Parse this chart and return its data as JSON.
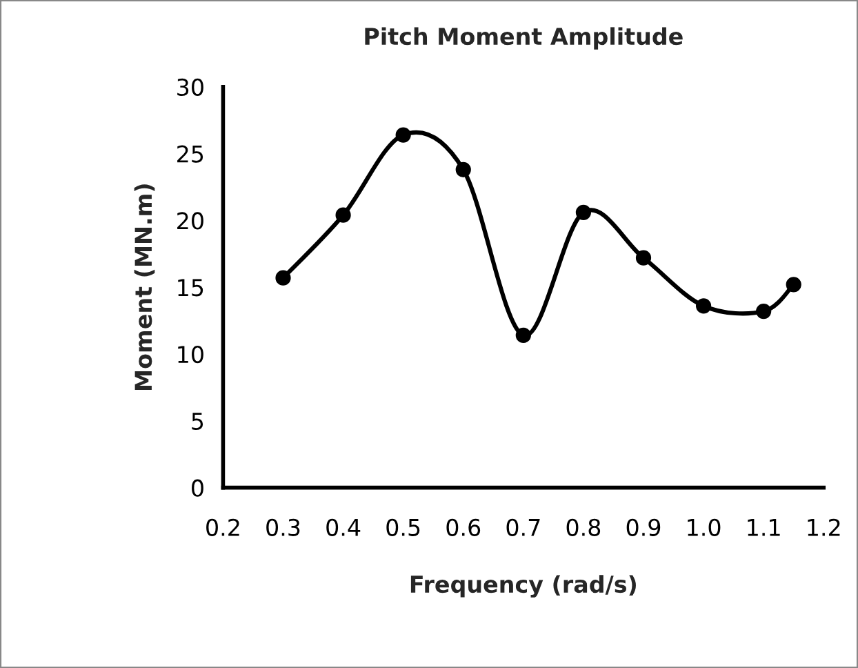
{
  "chart_data": {
    "type": "line",
    "title": "Pitch Moment Amplitude",
    "xlabel": "Frequency (rad/s)",
    "ylabel": "Moment (MN.m)",
    "x": [
      0.3,
      0.4,
      0.5,
      0.6,
      0.7,
      0.8,
      0.9,
      1.0,
      1.1,
      1.15
    ],
    "series": [
      {
        "color": "#000000",
        "values": [
          15.7,
          20.4,
          26.4,
          23.8,
          11.4,
          20.6,
          17.2,
          13.6,
          13.2,
          15.2
        ]
      }
    ],
    "xlim": [
      0.2,
      1.2
    ],
    "xticks": [
      0.2,
      0.3,
      0.4,
      0.5,
      0.6,
      0.7,
      0.8,
      0.9,
      {
        "value": 1.0,
        "label": "1.0"
      },
      1.1,
      1.2
    ],
    "ylim": [
      0,
      30
    ],
    "yticks": [
      0,
      5,
      10,
      15,
      20,
      25,
      30
    ],
    "grid": false,
    "legend": false,
    "marker": "circle",
    "line_style": "solid"
  }
}
